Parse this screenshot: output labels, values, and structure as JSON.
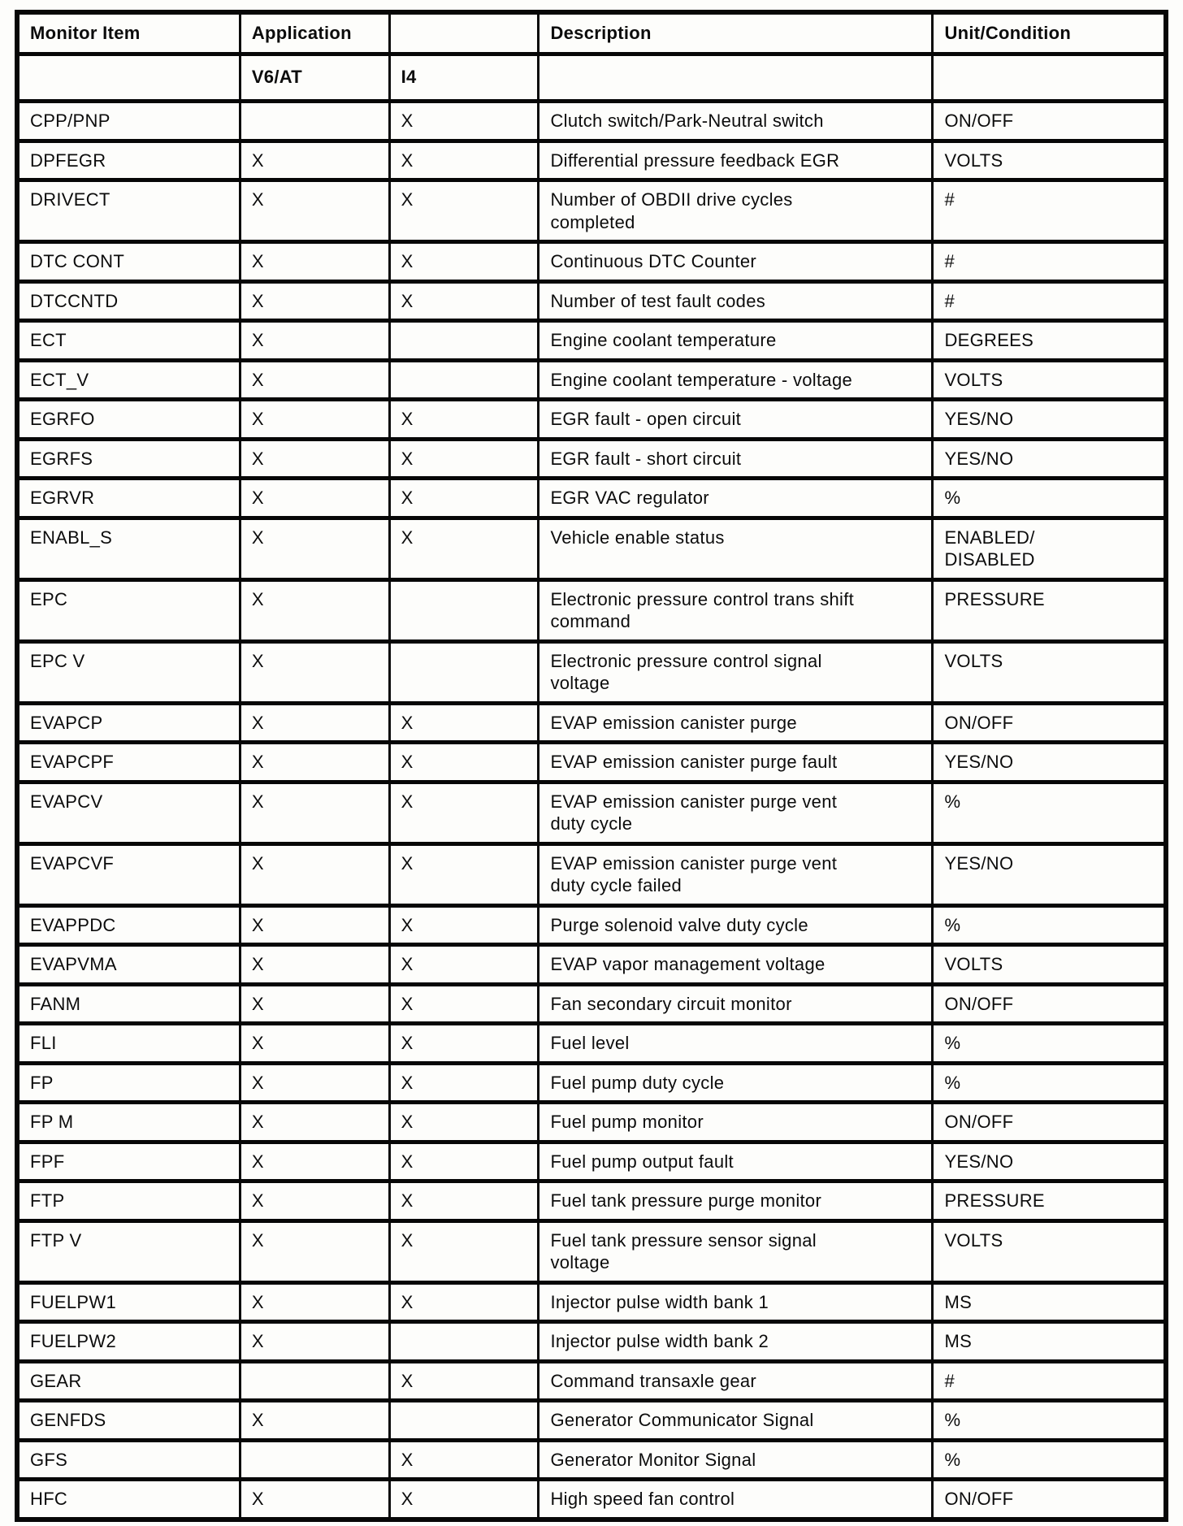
{
  "table": {
    "header": {
      "monitor_item": "Monitor Item",
      "application": "Application",
      "application_col2": "",
      "description": "Description",
      "unit_condition": "Unit/Condition"
    },
    "subheader": {
      "monitor_item": "",
      "v6_at": "V6/AT",
      "i4": "I4",
      "description": "",
      "unit_condition": ""
    },
    "rows": [
      {
        "item": "CPP/PNP",
        "v6at": "",
        "i4": "X",
        "description": "Clutch switch/Park-Neutral switch",
        "unit": "ON/OFF"
      },
      {
        "item": "DPFEGR",
        "v6at": "X",
        "i4": "X",
        "description": "Differential pressure feedback EGR",
        "unit": "VOLTS"
      },
      {
        "item": "DRIVECT",
        "v6at": "X",
        "i4": "X",
        "description": "Number of OBDII drive cycles\ncompleted",
        "unit": "#"
      },
      {
        "item": "DTC CONT",
        "v6at": "X",
        "i4": "X",
        "description": "Continuous DTC Counter",
        "unit": "#"
      },
      {
        "item": "DTCCNTD",
        "v6at": "X",
        "i4": "X",
        "description": "Number of test fault codes",
        "unit": "#"
      },
      {
        "item": "ECT",
        "v6at": "X",
        "i4": "",
        "description": "Engine coolant temperature",
        "unit": "DEGREES"
      },
      {
        "item": "ECT_V",
        "v6at": "X",
        "i4": "",
        "description": "Engine coolant temperature - voltage",
        "unit": "VOLTS"
      },
      {
        "item": "EGRFO",
        "v6at": "X",
        "i4": "X",
        "description": "EGR fault - open circuit",
        "unit": "YES/NO"
      },
      {
        "item": "EGRFS",
        "v6at": "X",
        "i4": "X",
        "description": "EGR fault - short circuit",
        "unit": "YES/NO"
      },
      {
        "item": "EGRVR",
        "v6at": "X",
        "i4": "X",
        "description": "EGR VAC regulator",
        "unit": "%"
      },
      {
        "item": "ENABL_S",
        "v6at": "X",
        "i4": "X",
        "description": "Vehicle enable status",
        "unit": "ENABLED/\nDISABLED"
      },
      {
        "item": "EPC",
        "v6at": "X",
        "i4": "",
        "description": "Electronic pressure control trans shift\ncommand",
        "unit": "PRESSURE"
      },
      {
        "item": "EPC V",
        "v6at": "X",
        "i4": "",
        "description": "Electronic pressure control signal\nvoltage",
        "unit": "VOLTS"
      },
      {
        "item": "EVAPCP",
        "v6at": "X",
        "i4": "X",
        "description": "EVAP emission canister purge",
        "unit": "ON/OFF"
      },
      {
        "item": "EVAPCPF",
        "v6at": "X",
        "i4": "X",
        "description": "EVAP emission canister purge fault",
        "unit": "YES/NO"
      },
      {
        "item": "EVAPCV",
        "v6at": "X",
        "i4": "X",
        "description": "EVAP emission canister purge vent\nduty cycle",
        "unit": "%"
      },
      {
        "item": "EVAPCVF",
        "v6at": "X",
        "i4": "X",
        "description": "EVAP emission canister purge vent\nduty cycle failed",
        "unit": "YES/NO"
      },
      {
        "item": "EVAPPDC",
        "v6at": "X",
        "i4": "X",
        "description": "Purge solenoid valve duty cycle",
        "unit": "%"
      },
      {
        "item": "EVAPVMA",
        "v6at": "X",
        "i4": "X",
        "description": "EVAP vapor management voltage",
        "unit": "VOLTS"
      },
      {
        "item": "FANM",
        "v6at": "X",
        "i4": "X",
        "description": "Fan secondary circuit monitor",
        "unit": "ON/OFF"
      },
      {
        "item": "FLI",
        "v6at": "X",
        "i4": "X",
        "description": "Fuel level",
        "unit": "%"
      },
      {
        "item": "FP",
        "v6at": "X",
        "i4": "X",
        "description": "Fuel pump duty cycle",
        "unit": "%"
      },
      {
        "item": "FP M",
        "v6at": "X",
        "i4": "X",
        "description": "Fuel pump monitor",
        "unit": "ON/OFF"
      },
      {
        "item": "FPF",
        "v6at": "X",
        "i4": "X",
        "description": "Fuel pump output fault",
        "unit": "YES/NO"
      },
      {
        "item": "FTP",
        "v6at": "X",
        "i4": "X",
        "description": "Fuel tank pressure purge monitor",
        "unit": "PRESSURE"
      },
      {
        "item": "FTP V",
        "v6at": "X",
        "i4": "X",
        "description": "Fuel tank pressure sensor signal\nvoltage",
        "unit": "VOLTS"
      },
      {
        "item": "FUELPW1",
        "v6at": "X",
        "i4": "X",
        "description": "Injector pulse width bank 1",
        "unit": "MS"
      },
      {
        "item": "FUELPW2",
        "v6at": "X",
        "i4": "",
        "description": "Injector pulse width bank 2",
        "unit": "MS"
      },
      {
        "item": "GEAR",
        "v6at": "",
        "i4": "X",
        "description": "Command transaxle gear",
        "unit": "#"
      },
      {
        "item": "GENFDS",
        "v6at": "X",
        "i4": "",
        "description": "Generator Communicator Signal",
        "unit": "%"
      },
      {
        "item": "GFS",
        "v6at": "",
        "i4": "X",
        "description": "Generator Monitor Signal",
        "unit": "%"
      },
      {
        "item": "HFC",
        "v6at": "X",
        "i4": "X",
        "description": "High speed fan control",
        "unit": "ON/OFF"
      }
    ]
  }
}
